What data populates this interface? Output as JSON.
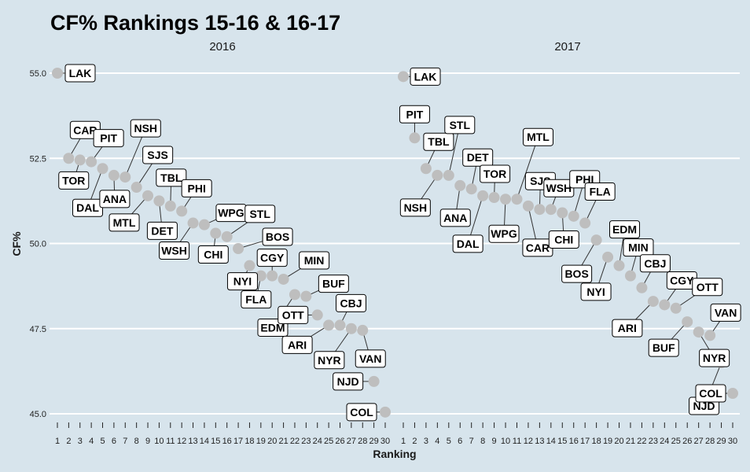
{
  "title": "CF% Rankings 15-16 & 16-17",
  "chart_data": {
    "type": "scatter",
    "title": "CF% Rankings 15-16 & 16-17",
    "xlabel": "Ranking",
    "ylabel": "CF%",
    "xlim": [
      1,
      30
    ],
    "ylim": [
      45,
      55
    ],
    "yticks": [
      "45.0",
      "47.5",
      "50.0",
      "52.5",
      "55.0"
    ],
    "xticks": [
      "1",
      "2",
      "3",
      "4",
      "5",
      "6",
      "7",
      "8",
      "9",
      "10",
      "11",
      "12",
      "13",
      "14",
      "15",
      "16",
      "17",
      "18",
      "19",
      "20",
      "21",
      "22",
      "23",
      "24",
      "25",
      "26",
      "27",
      "28",
      "29",
      "30"
    ],
    "grid": "horizontal",
    "point_color": "#bebebe",
    "panels": [
      {
        "name": "2016",
        "points": [
          {
            "team": "LAK",
            "rank": 1,
            "cf": 55.0
          },
          {
            "team": "CAR",
            "rank": 2,
            "cf": 52.5
          },
          {
            "team": "TOR",
            "rank": 3,
            "cf": 52.45
          },
          {
            "team": "PIT",
            "rank": 4,
            "cf": 52.4
          },
          {
            "team": "DAL",
            "rank": 5,
            "cf": 52.2
          },
          {
            "team": "ANA",
            "rank": 6,
            "cf": 52.0
          },
          {
            "team": "NSH",
            "rank": 7,
            "cf": 51.95
          },
          {
            "team": "SJS",
            "rank": 8,
            "cf": 51.65
          },
          {
            "team": "MTL",
            "rank": 9,
            "cf": 51.4
          },
          {
            "team": "DET",
            "rank": 10,
            "cf": 51.25
          },
          {
            "team": "TBL",
            "rank": 11,
            "cf": 51.1
          },
          {
            "team": "PHI",
            "rank": 12,
            "cf": 50.95
          },
          {
            "team": "WSH",
            "rank": 13,
            "cf": 50.6
          },
          {
            "team": "WPG",
            "rank": 14,
            "cf": 50.55
          },
          {
            "team": "CHI",
            "rank": 15,
            "cf": 50.3
          },
          {
            "team": "STL",
            "rank": 16,
            "cf": 50.2
          },
          {
            "team": "BOS",
            "rank": 17,
            "cf": 49.85
          },
          {
            "team": "NYI",
            "rank": 18,
            "cf": 49.35
          },
          {
            "team": "FLA",
            "rank": 19,
            "cf": 49.05
          },
          {
            "team": "CGY",
            "rank": 20,
            "cf": 49.05
          },
          {
            "team": "MIN",
            "rank": 21,
            "cf": 48.95
          },
          {
            "team": "EDM",
            "rank": 22,
            "cf": 48.5
          },
          {
            "team": "BUF",
            "rank": 23,
            "cf": 48.45
          },
          {
            "team": "OTT",
            "rank": 24,
            "cf": 47.9
          },
          {
            "team": "ARI",
            "rank": 25,
            "cf": 47.6
          },
          {
            "team": "CBJ",
            "rank": 26,
            "cf": 47.6
          },
          {
            "team": "NYR",
            "rank": 27,
            "cf": 47.5
          },
          {
            "team": "VAN",
            "rank": 28,
            "cf": 47.45
          },
          {
            "team": "NJD",
            "rank": 29,
            "cf": 45.95
          },
          {
            "team": "COL",
            "rank": 30,
            "cf": 45.05
          }
        ]
      },
      {
        "name": "2017",
        "points": [
          {
            "team": "LAK",
            "rank": 1,
            "cf": 54.9
          },
          {
            "team": "PIT",
            "rank": 2,
            "cf": 53.1
          },
          {
            "team": "TBL",
            "rank": 3,
            "cf": 52.2
          },
          {
            "team": "NSH",
            "rank": 4,
            "cf": 52.0
          },
          {
            "team": "STL",
            "rank": 5,
            "cf": 52.0
          },
          {
            "team": "ANA",
            "rank": 6,
            "cf": 51.7
          },
          {
            "team": "DET",
            "rank": 7,
            "cf": 51.6
          },
          {
            "team": "DAL",
            "rank": 8,
            "cf": 51.4
          },
          {
            "team": "TOR",
            "rank": 9,
            "cf": 51.35
          },
          {
            "team": "WPG",
            "rank": 10,
            "cf": 51.3
          },
          {
            "team": "MTL",
            "rank": 11,
            "cf": 51.3
          },
          {
            "team": "CAR",
            "rank": 12,
            "cf": 51.1
          },
          {
            "team": "SJS",
            "rank": 13,
            "cf": 51.0
          },
          {
            "team": "WSH",
            "rank": 14,
            "cf": 51.0
          },
          {
            "team": "CHI",
            "rank": 15,
            "cf": 50.9
          },
          {
            "team": "PHI",
            "rank": 16,
            "cf": 50.8
          },
          {
            "team": "FLA",
            "rank": 17,
            "cf": 50.6
          },
          {
            "team": "BOS",
            "rank": 18,
            "cf": 50.1
          },
          {
            "team": "NYI",
            "rank": 19,
            "cf": 49.6
          },
          {
            "team": "EDM",
            "rank": 20,
            "cf": 49.35
          },
          {
            "team": "MIN",
            "rank": 21,
            "cf": 49.05
          },
          {
            "team": "CBJ",
            "rank": 22,
            "cf": 48.7
          },
          {
            "team": "ARI",
            "rank": 23,
            "cf": 48.3
          },
          {
            "team": "CGY",
            "rank": 24,
            "cf": 48.2
          },
          {
            "team": "OTT",
            "rank": 25,
            "cf": 48.1
          },
          {
            "team": "BUF",
            "rank": 26,
            "cf": 47.7
          },
          {
            "team": "NYR",
            "rank": 27,
            "cf": 47.4
          },
          {
            "team": "VAN",
            "rank": 28,
            "cf": 47.3
          },
          {
            "team": "NJD",
            "rank": 29,
            "cf": 46.5
          },
          {
            "team": "COL",
            "rank": 30,
            "cf": 45.6
          }
        ]
      }
    ]
  }
}
